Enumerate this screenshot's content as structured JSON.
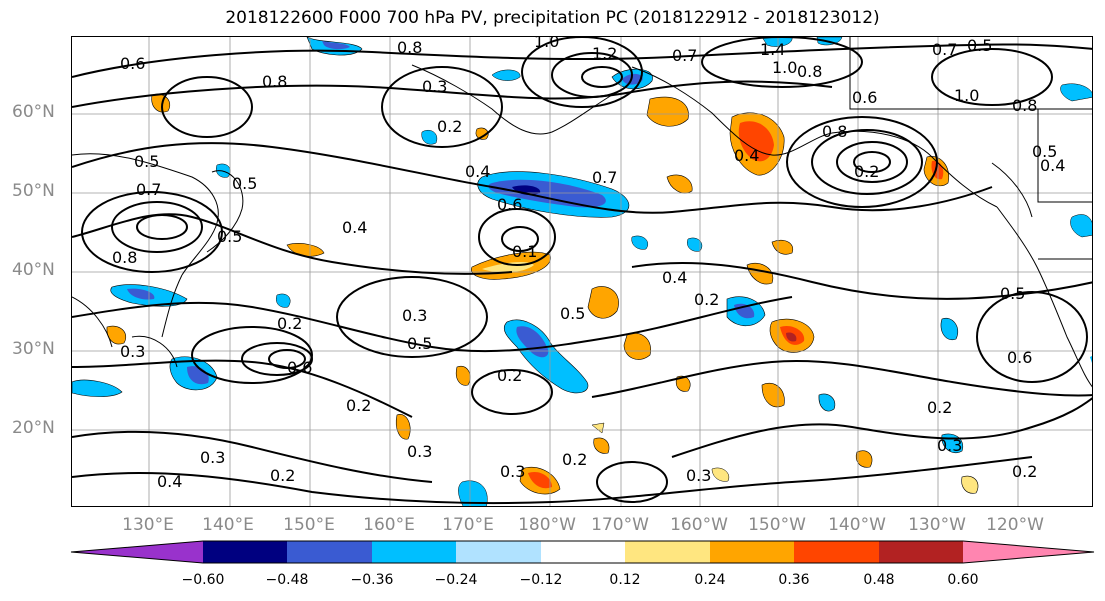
{
  "title": "2018122600 F000 700 hPa PV, precipitation PC (2018122912 - 2018123012)",
  "lat_labels": [
    "60°N",
    "50°N",
    "40°N",
    "30°N",
    "20°N"
  ],
  "lon_labels": [
    "130°E",
    "140°E",
    "150°E",
    "160°E",
    "170°E",
    "180°W",
    "170°W",
    "160°W",
    "150°W",
    "140°W",
    "130°W",
    "120°W"
  ],
  "colorbar": {
    "ticks": [
      "−0.60",
      "−0.48",
      "−0.36",
      "−0.24",
      "−0.12",
      "0.12",
      "0.24",
      "0.36",
      "0.48",
      "0.60"
    ],
    "colors": [
      "#9932cc",
      "#000080",
      "#3a5bd2",
      "#00bfff",
      "#b0e2ff",
      "#ffffff",
      "#ffe680",
      "#ffa500",
      "#ff4500",
      "#b22222",
      "#ff85b0"
    ]
  },
  "contour_labels": [
    "0.6",
    "0.8",
    "0.8",
    "0.3",
    "1.0",
    "1.2",
    "0.7",
    "1.4",
    "1.0",
    "0.8",
    "0.7",
    "0.5",
    "1.0",
    "0.8",
    "0.5",
    "0.4",
    "0.2",
    "0.6",
    "0.8",
    "0.4",
    "0.5",
    "0.7",
    "0.5",
    "0.4",
    "0.6",
    "0.7",
    "0.2",
    "0.8",
    "0.4",
    "0.1",
    "0.5",
    "0.4",
    "0.2",
    "0.5",
    "0.3",
    "0.5",
    "0.2",
    "0.3",
    "0.6",
    "0.2",
    "0.5",
    "0.6",
    "0.2",
    "0.2",
    "0.3",
    "0.3",
    "0.4",
    "0.2",
    "0.3",
    "0.2",
    "0.3",
    "0.2",
    "0.3"
  ]
}
